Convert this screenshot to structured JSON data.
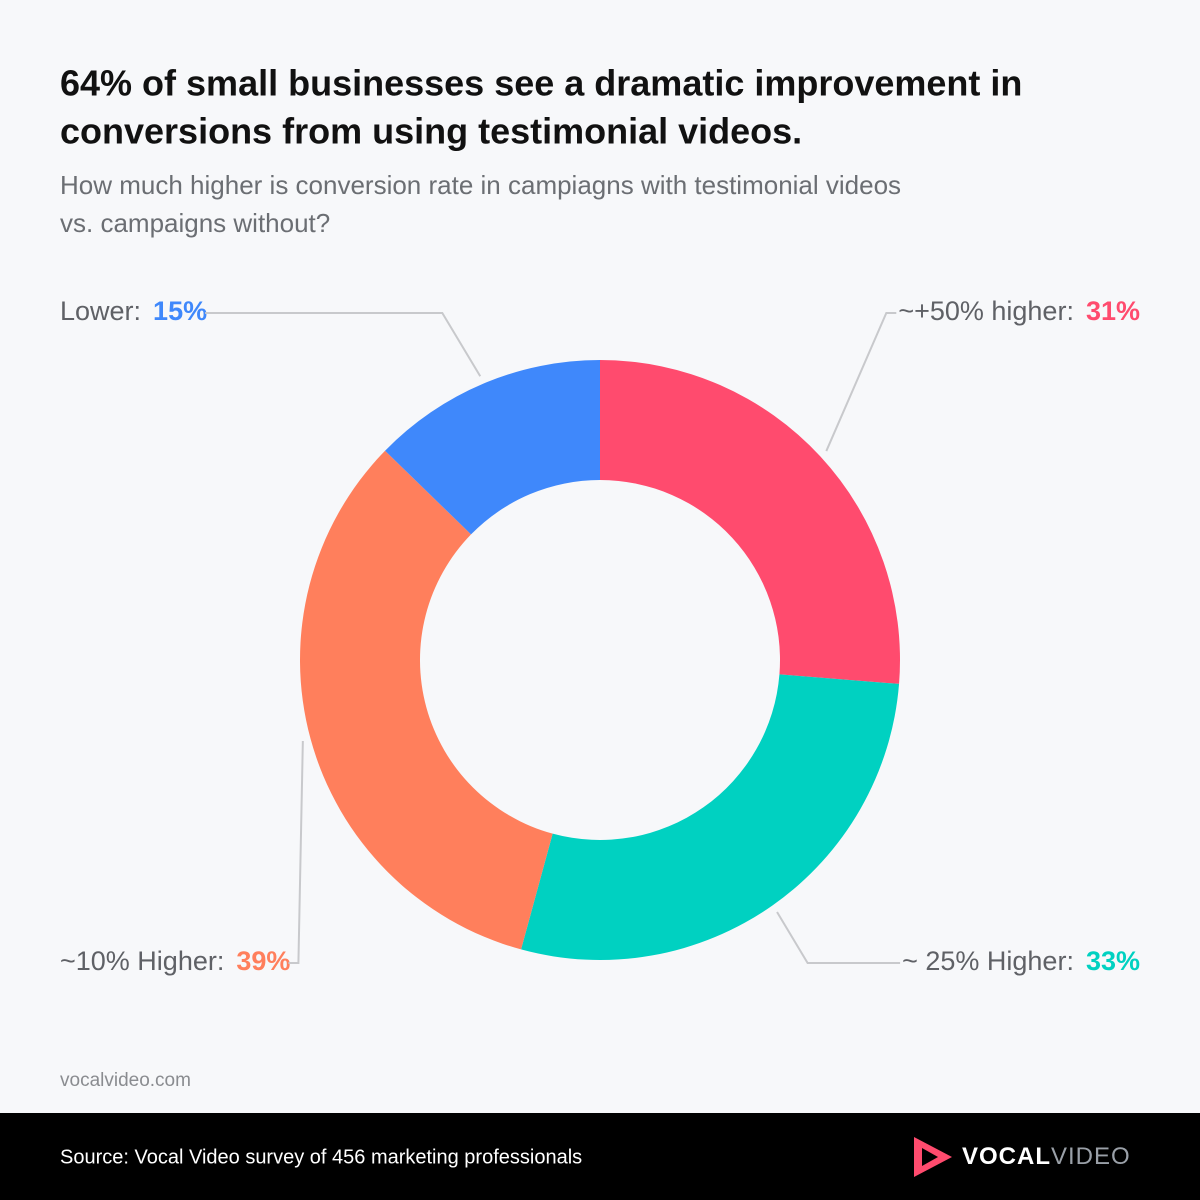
{
  "chart_data": {
    "type": "pie",
    "donut": true,
    "title": [
      "64% of small businesses see a dramatic improvement in",
      "conversions from using testimonial videos."
    ],
    "subtitle": [
      "How much higher is conversion rate in campiagns with testimonial videos",
      "vs. campaigns without?"
    ],
    "categories": [
      "~+50% higher:",
      "~ 25% Higher:",
      "~10% Higher:",
      "Lower:"
    ],
    "values": [
      31,
      33,
      39,
      15
    ],
    "value_labels": [
      "31%",
      "33%",
      "39%",
      "15%"
    ],
    "colors": [
      "#ff4b6e",
      "#00d1c1",
      "#ff7f5c",
      "#3f88fb"
    ]
  },
  "site": "vocalvideo.com",
  "source": "Source: Vocal Video survey of 456 marketing professionals",
  "logo": {
    "first": "VOCAL",
    "second": "VIDEO"
  }
}
